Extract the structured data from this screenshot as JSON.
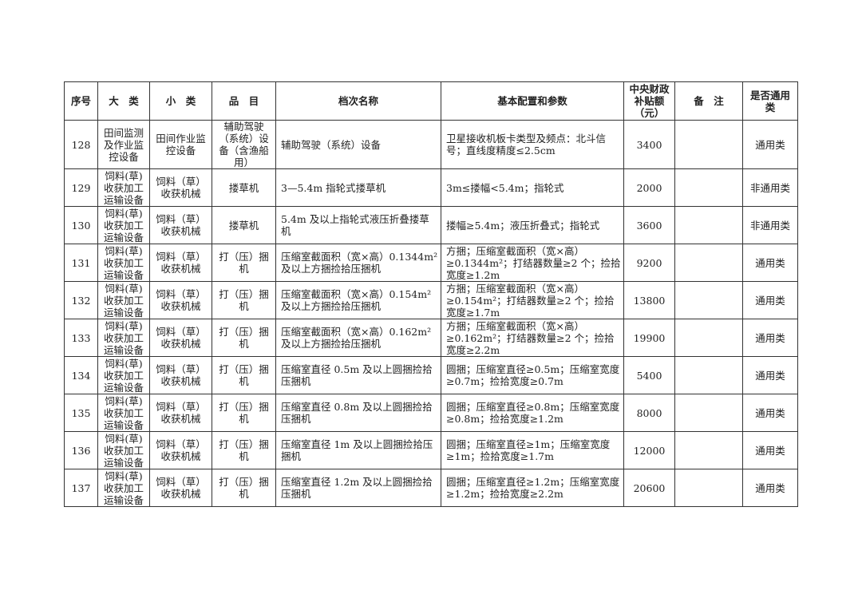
{
  "header": [
    "序号",
    "大　类",
    "小　类",
    "品　目",
    "档次名称",
    "基本配置和参数",
    "中央财政补贴额（元）",
    "备　注",
    "是否通用类"
  ],
  "rows": [
    {
      "no": "128",
      "major": "田间监测及作业监控设备",
      "minor": "田间作业监控设备",
      "item": "辅助驾驶（系统）设备（含渔船用）",
      "grade": "辅助驾驶（系统）设备",
      "config": "卫星接收机板卡类型及频点：北斗信号；直线度精度≤2.5cm",
      "subsidy": "3400",
      "note": "",
      "general": "通用类"
    },
    {
      "no": "129",
      "major": "饲料(草)收获加工运输设备",
      "minor": "饲料（草）收获机械",
      "item": "搂草机",
      "grade": "3—5.4m 指轮式搂草机",
      "config": "3m≤搂幅<5.4m；指轮式",
      "subsidy": "2000",
      "note": "",
      "general": "非通用类"
    },
    {
      "no": "130",
      "major": "饲料(草)收获加工运输设备",
      "minor": "饲料（草）收获机械",
      "item": "搂草机",
      "grade": "5.4m 及以上指轮式液压折叠搂草机",
      "config": "搂幅≥5.4m；液压折叠式；指轮式",
      "subsidy": "3600",
      "note": "",
      "general": "非通用类"
    },
    {
      "no": "131",
      "major": "饲料(草)收获加工运输设备",
      "minor": "饲料（草）收获机械",
      "item": "打（压）捆机",
      "grade": "压缩室截面积（宽×高）0.1344m² 及以上方捆捡拾压捆机",
      "config": "方捆；压缩室截面积（宽×高）≥0.1344m²；打结器数量≥2 个；捡拾宽度≥1.2m",
      "subsidy": "9200",
      "note": "",
      "general": "通用类"
    },
    {
      "no": "132",
      "major": "饲料(草)收获加工运输设备",
      "minor": "饲料（草）收获机械",
      "item": "打（压）捆机",
      "grade": "压缩室截面积（宽×高）0.154m² 及以上方捆捡拾压捆机",
      "config": "方捆；压缩室截面积（宽×高）≥0.154m²；打结器数量≥2 个；捡拾宽度≥1.7m",
      "subsidy": "13800",
      "note": "",
      "general": "通用类"
    },
    {
      "no": "133",
      "major": "饲料(草)收获加工运输设备",
      "minor": "饲料（草）收获机械",
      "item": "打（压）捆机",
      "grade": "压缩室截面积（宽×高）0.162m² 及以上方捆捡拾压捆机",
      "config": "方捆；压缩室截面积（宽×高）≥0.162m²；打结器数量≥2 个；捡拾宽度≥2.2m",
      "subsidy": "19900",
      "note": "",
      "general": "通用类"
    },
    {
      "no": "134",
      "major": "饲料(草)收获加工运输设备",
      "minor": "饲料（草）收获机械",
      "item": "打（压）捆机",
      "grade": "压缩室直径 0.5m 及以上圆捆捡拾压捆机",
      "config": "圆捆；压缩室直径≥0.5m；压缩室宽度≥0.7m；捡拾宽度≥0.7m",
      "subsidy": "5400",
      "note": "",
      "general": "通用类"
    },
    {
      "no": "135",
      "major": "饲料(草)收获加工运输设备",
      "minor": "饲料（草）收获机械",
      "item": "打（压）捆机",
      "grade": "压缩室直径 0.8m 及以上圆捆捡拾压捆机",
      "config": "圆捆；压缩室直径≥0.8m；压缩室宽度≥0.8m；捡拾宽度≥1.2m",
      "subsidy": "8000",
      "note": "",
      "general": "通用类"
    },
    {
      "no": "136",
      "major": "饲料(草)收获加工运输设备",
      "minor": "饲料（草）收获机械",
      "item": "打（压）捆机",
      "grade": "压缩室直径 1m 及以上圆捆捡拾压捆机",
      "config": "圆捆；压缩室直径≥1m；压缩室宽度≥1m；捡拾宽度≥1.7m",
      "subsidy": "12000",
      "note": "",
      "general": "通用类"
    },
    {
      "no": "137",
      "major": "饲料(草)收获加工运输设备",
      "minor": "饲料（草）收获机械",
      "item": "打（压）捆机",
      "grade": "压缩室直径 1.2m 及以上圆捆捡拾压捆机",
      "config": "圆捆；压缩室直径≥1.2m；压缩室宽度≥1.2m；捡拾宽度≥2.2m",
      "subsidy": "20600",
      "note": "",
      "general": "通用类"
    }
  ]
}
